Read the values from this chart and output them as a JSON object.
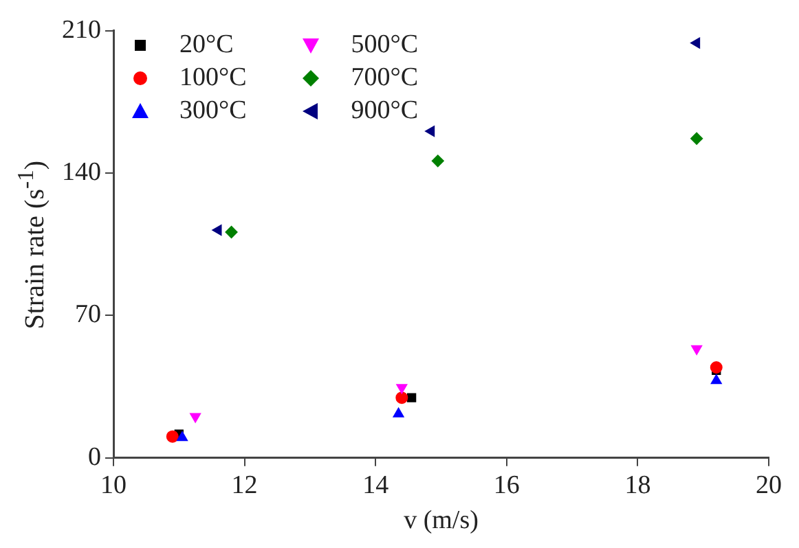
{
  "chart_data": {
    "type": "scatter",
    "xlabel": "v (m/s)",
    "ylabel": "Strain rate (s$^{-1}$)",
    "xlim": [
      10,
      20
    ],
    "xticks": [
      10,
      12,
      14,
      16,
      18,
      20
    ],
    "ylim": [
      0,
      210
    ],
    "yticks": [
      0,
      70,
      140,
      210
    ],
    "legend": "top left",
    "series": [
      {
        "name": "20°C",
        "color": "#000000",
        "marker": "square",
        "x": [
          11.0,
          14.55,
          19.2
        ],
        "values": [
          11.7,
          29.6,
          43
        ]
      },
      {
        "name": "100°C",
        "color": "#ff0000",
        "marker": "circle",
        "x": [
          10.9,
          14.4,
          19.2
        ],
        "values": [
          10.5,
          29.6,
          44.5
        ]
      },
      {
        "name": "300°C",
        "color": "#0000ff",
        "marker": "triangle",
        "x": [
          11.05,
          14.35,
          19.2
        ],
        "values": [
          10,
          21.6,
          38
        ]
      },
      {
        "name": "500°C",
        "color": "#ff00ff",
        "marker": "triangle-down",
        "x": [
          11.25,
          14.4,
          18.9
        ],
        "values": [
          20.4,
          34.6,
          53.7
        ]
      },
      {
        "name": "700°C",
        "color": "#008000",
        "marker": "diamond",
        "x": [
          11.8,
          14.95,
          18.9
        ],
        "values": [
          111,
          146,
          157
        ]
      },
      {
        "name": "900°C",
        "color": "#000080",
        "marker": "triangle-left",
        "x": [
          11.6,
          14.85,
          18.9
        ],
        "values": [
          112,
          160.6,
          204
        ]
      }
    ]
  }
}
